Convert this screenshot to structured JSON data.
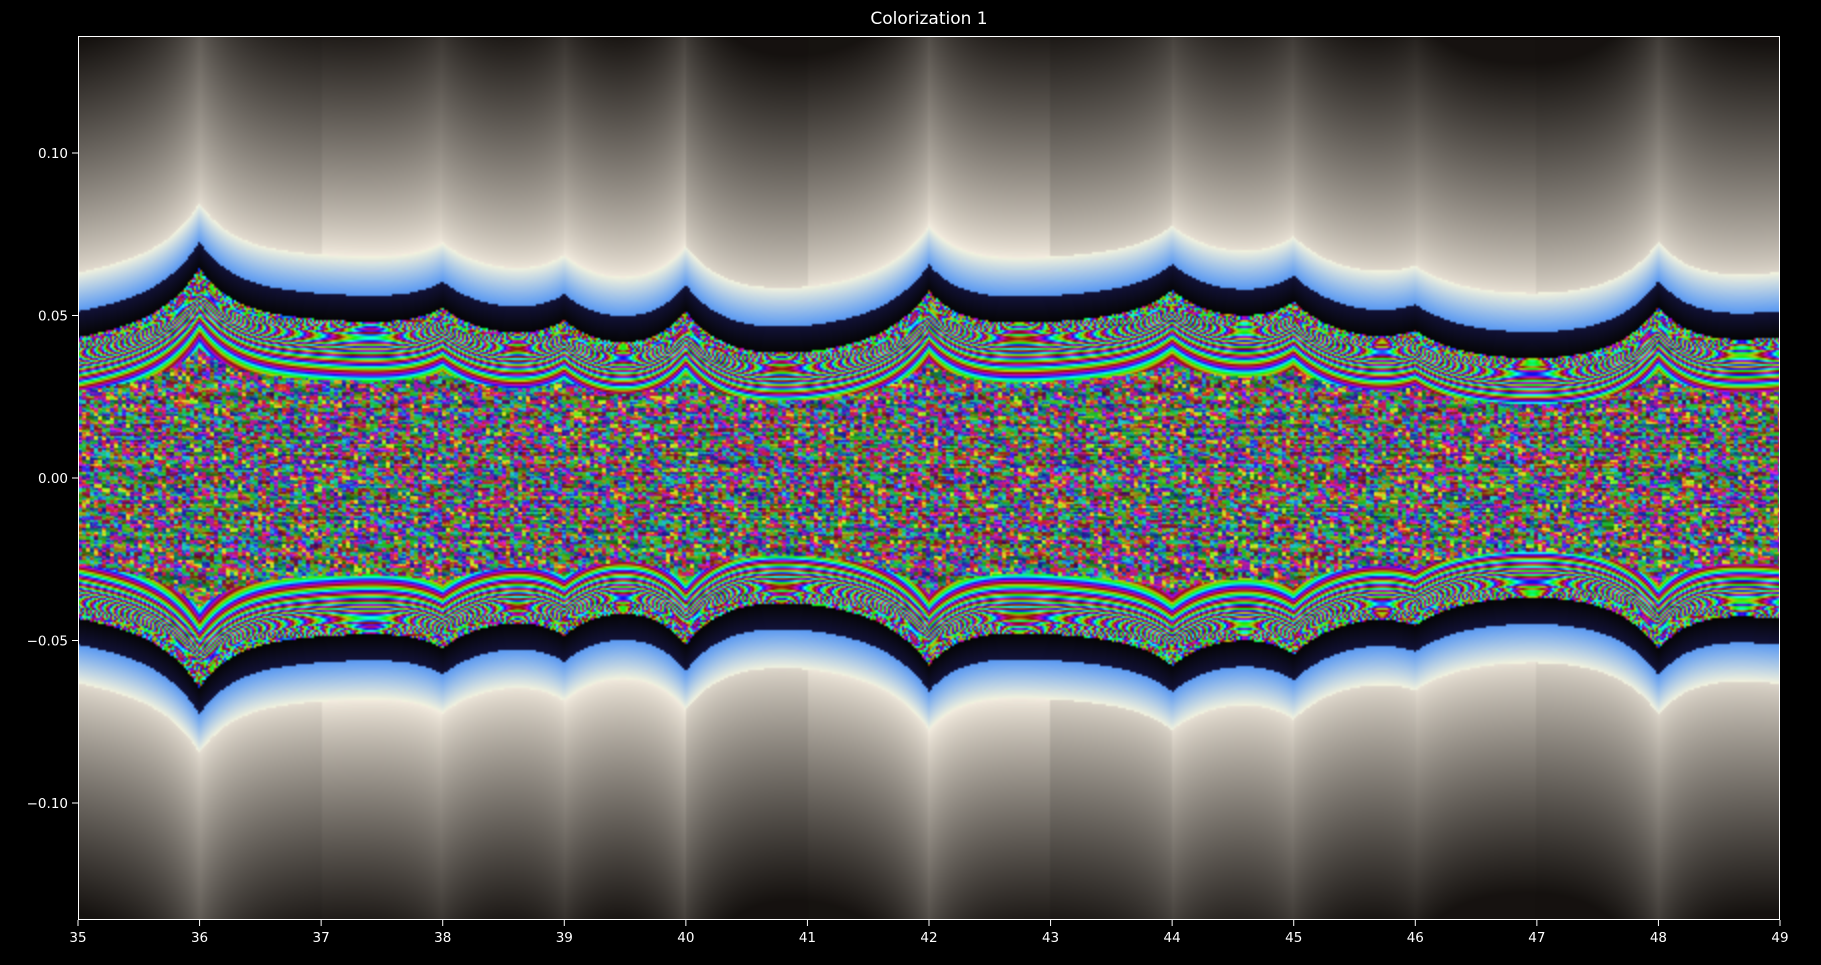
{
  "figure": {
    "background": "#000000",
    "foreground": "#ffffff"
  },
  "chart_data": {
    "type": "heatmap",
    "title": "Colorization 1",
    "xlabel": "",
    "ylabel": "",
    "xlim": [
      35,
      49
    ],
    "ylim": [
      -0.136,
      0.136
    ],
    "grid": false,
    "x_ticks": [
      35,
      36,
      37,
      38,
      39,
      40,
      41,
      42,
      43,
      44,
      45,
      46,
      47,
      48,
      49
    ],
    "x_tick_labels": [
      "35",
      "36",
      "37",
      "38",
      "39",
      "40",
      "41",
      "42",
      "43",
      "44",
      "45",
      "46",
      "47",
      "48",
      "49"
    ],
    "y_ticks": [
      0.1,
      0.05,
      0.0,
      -0.05,
      -0.1
    ],
    "y_tick_labels": [
      "0.10",
      "0.05",
      "0.00",
      "−0.05",
      "−0.10"
    ],
    "colormap": "cyclic rainbow bands near the horizontal axis, shading through black and light blue to cream, fading to dark brown-black away from the axis",
    "cusps": [
      {
        "x": 36,
        "strength": 1.0
      },
      {
        "x": 38,
        "strength": 0.45
      },
      {
        "x": 39,
        "strength": 0.5
      },
      {
        "x": 40,
        "strength": 0.85
      },
      {
        "x": 42,
        "strength": 0.85
      },
      {
        "x": 44,
        "strength": 0.55
      },
      {
        "x": 45,
        "strength": 0.55
      },
      {
        "x": 46,
        "strength": 0.35
      },
      {
        "x": 48,
        "strength": 0.85
      }
    ],
    "colors": {
      "band_red": "#ff2020",
      "band_yellow": "#ffd020",
      "band_cyan": "#30c8ff",
      "band_blue": "#2040ff",
      "band_black": "#000000",
      "halo_light": "#f4ece2",
      "far_field": "#1c1612"
    }
  }
}
